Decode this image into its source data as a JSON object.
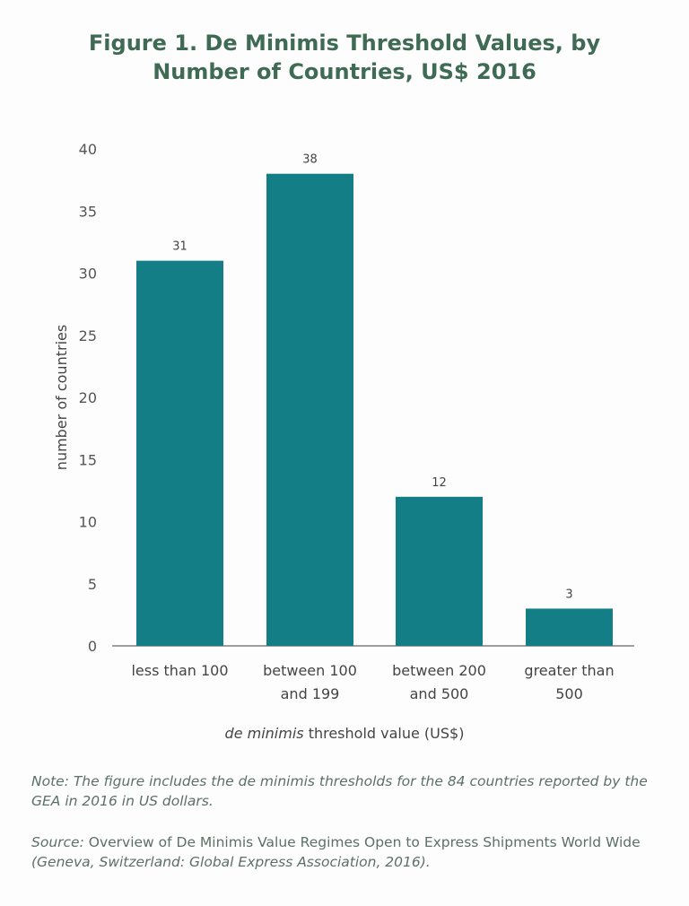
{
  "chart_data": {
    "type": "bar",
    "title_line1": "Figure 1. De Minimis Threshold Values, by",
    "title_line2": "Number of Countries, US$ 2016",
    "categories": [
      [
        "less than 100"
      ],
      [
        "between 100",
        "and 199"
      ],
      [
        "between 200",
        "and 500"
      ],
      [
        "greater than",
        "500"
      ]
    ],
    "values": [
      31,
      38,
      12,
      3
    ],
    "ylabel": "number of countries",
    "xlabel_italic": "de minimis",
    "xlabel_rest": " threshold value (US$)",
    "ylim": [
      0,
      40
    ],
    "yticks": [
      0,
      5,
      10,
      15,
      20,
      25,
      30,
      35,
      40
    ],
    "grid": false,
    "bar_color": "#137e86"
  },
  "note": {
    "text": "Note: The figure includes the de minimis thresholds for the 84 countries reported by the GEA in 2016 in US dollars."
  },
  "source": {
    "label": "Source:",
    "title": " Overview of De Minimis Value Regimes Open to Express Shipments World Wide ",
    "publisher": "(Geneva, Switzerland: Global Express Association, 2016)."
  }
}
